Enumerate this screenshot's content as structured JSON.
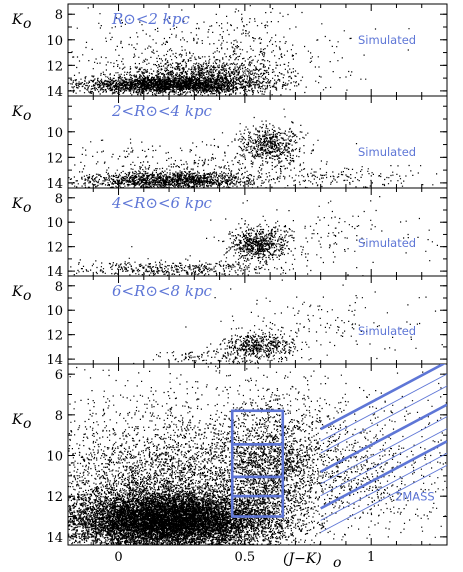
{
  "colors": {
    "accent": "#5e76d6",
    "points": "#000000"
  },
  "figure": {
    "x_label": "(J−K)",
    "x_label_sub": "o"
  },
  "chart_data": [
    {
      "type": "scatter",
      "title": "R⊙<2 kpc",
      "ylabel": "K",
      "ylabel_sub": "o",
      "annotation": "Simulated",
      "xlim": [
        -0.2,
        1.3
      ],
      "ylim": [
        14.4,
        7.2
      ],
      "yticks": [
        8,
        10,
        12,
        14
      ],
      "clusters": [
        {
          "x": 0.2,
          "y": 13.5,
          "sx": 0.18,
          "sy": 0.35,
          "n": 2600
        },
        {
          "x": 0.35,
          "y": 12.7,
          "sx": 0.15,
          "sy": 0.6,
          "n": 900
        },
        {
          "x": 0.3,
          "y": 11.0,
          "sx": 0.3,
          "sy": 1.5,
          "n": 450
        },
        {
          "x": 0.55,
          "y": 10.0,
          "sx": 0.08,
          "sy": 1.5,
          "n": 80
        }
      ]
    },
    {
      "type": "scatter",
      "title": "2<R⊙<4 kpc",
      "ylabel": "K",
      "ylabel_sub": "o",
      "annotation": "Simulated",
      "xlim": [
        -0.2,
        1.3
      ],
      "ylim": [
        14.4,
        7.2
      ],
      "yticks": [
        10,
        12,
        14
      ],
      "clusters": [
        {
          "x": 0.2,
          "y": 13.8,
          "sx": 0.17,
          "sy": 0.35,
          "n": 1500
        },
        {
          "x": 0.6,
          "y": 11.0,
          "sx": 0.06,
          "sy": 0.8,
          "n": 550
        },
        {
          "x": 0.3,
          "y": 12.5,
          "sx": 0.3,
          "sy": 1.0,
          "n": 350
        },
        {
          "x": 0.9,
          "y": 13.5,
          "sx": 0.15,
          "sy": 0.5,
          "n": 140
        }
      ]
    },
    {
      "type": "scatter",
      "title": "4<R⊙<6 kpc",
      "ylabel": "K",
      "ylabel_sub": "o",
      "annotation": "Simulated",
      "xlim": [
        -0.2,
        1.3
      ],
      "ylim": [
        14.4,
        7.2
      ],
      "yticks": [
        8,
        10,
        12,
        14
      ],
      "clusters": [
        {
          "x": 0.55,
          "y": 11.8,
          "sx": 0.06,
          "sy": 0.7,
          "n": 650
        },
        {
          "x": 0.2,
          "y": 13.8,
          "sx": 0.2,
          "sy": 0.35,
          "n": 450
        },
        {
          "x": 0.8,
          "y": 11.0,
          "sx": 0.2,
          "sy": 1.5,
          "n": 170
        }
      ]
    },
    {
      "type": "scatter",
      "title": "6<R⊙<8 kpc",
      "ylabel": "K",
      "ylabel_sub": "o",
      "annotation": "Simulated",
      "xlim": [
        -0.2,
        1.3
      ],
      "ylim": [
        14.4,
        7.2
      ],
      "yticks": [
        8,
        10,
        12,
        14
      ],
      "clusters": [
        {
          "x": 0.55,
          "y": 12.8,
          "sx": 0.07,
          "sy": 0.6,
          "n": 500
        },
        {
          "x": 0.8,
          "y": 11.0,
          "sx": 0.2,
          "sy": 1.5,
          "n": 140
        },
        {
          "x": 0.4,
          "y": 13.8,
          "sx": 0.15,
          "sy": 0.3,
          "n": 120
        }
      ]
    },
    {
      "type": "scatter",
      "title": "",
      "ylabel": "K",
      "ylabel_sub": "o",
      "annotation": "2MASS",
      "xlim": [
        -0.2,
        1.3
      ],
      "ylim": [
        14.4,
        5.5
      ],
      "yticks": [
        6,
        8,
        10,
        12,
        14
      ],
      "xticks": [
        0,
        0.5,
        1
      ],
      "clusters": [
        {
          "x": 0.2,
          "y": 13.2,
          "sx": 0.2,
          "sy": 0.7,
          "n": 11000
        },
        {
          "x": 0.15,
          "y": 11.5,
          "sx": 0.25,
          "sy": 1.6,
          "n": 3000
        },
        {
          "x": 0.6,
          "y": 10.5,
          "sx": 0.1,
          "sy": 1.6,
          "n": 1500
        },
        {
          "x": 0.5,
          "y": 10.0,
          "sx": 0.45,
          "sy": 2.2,
          "n": 1600
        },
        {
          "x": 0.9,
          "y": 11.0,
          "sx": 0.2,
          "sy": 1.4,
          "n": 500
        }
      ],
      "boxes": [
        [
          0.45,
          0.65,
          7.8,
          9.45
        ],
        [
          0.45,
          0.65,
          9.45,
          11.05
        ],
        [
          0.45,
          0.65,
          11.05,
          12.0
        ],
        [
          0.45,
          0.65,
          12.0,
          13.0
        ]
      ],
      "diagonal_strips": [
        {
          "x0": 0.8,
          "y0": 8.7,
          "x1": 1.3,
          "y1": 5.4
        },
        {
          "x0": 0.8,
          "y0": 10.8,
          "x1": 1.3,
          "y1": 7.5
        },
        {
          "x0": 0.8,
          "y0": 12.6,
          "x1": 1.3,
          "y1": 9.3
        }
      ]
    }
  ]
}
